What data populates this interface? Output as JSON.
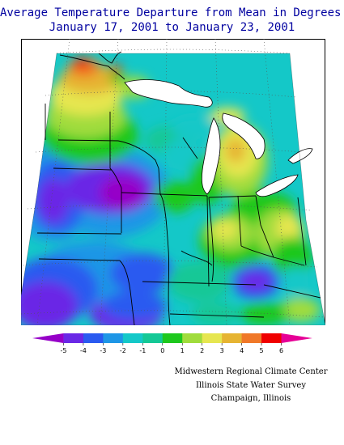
{
  "header": {
    "title_line1": "Average Temperature Departure from Mean in Degrees F",
    "title_line2": "January 17, 2001  to January 23, 2001"
  },
  "legend": {
    "ticks": [
      "-5",
      "-4",
      "-3",
      "-2",
      "-1",
      "0",
      "1",
      "2",
      "3",
      "4",
      "5",
      "6"
    ],
    "colors": [
      "#9600c8",
      "#6a28e6",
      "#2a5af0",
      "#1e96e6",
      "#14c8c8",
      "#14c896",
      "#1ec81e",
      "#a0dc3c",
      "#e6e650",
      "#e6b432",
      "#f07828",
      "#f00000",
      "#e60096"
    ]
  },
  "credits": {
    "line1": "Midwestern Regional Climate Center",
    "line2": "Illinois State Water Survey",
    "line3": "Champaign, Illinois"
  }
}
